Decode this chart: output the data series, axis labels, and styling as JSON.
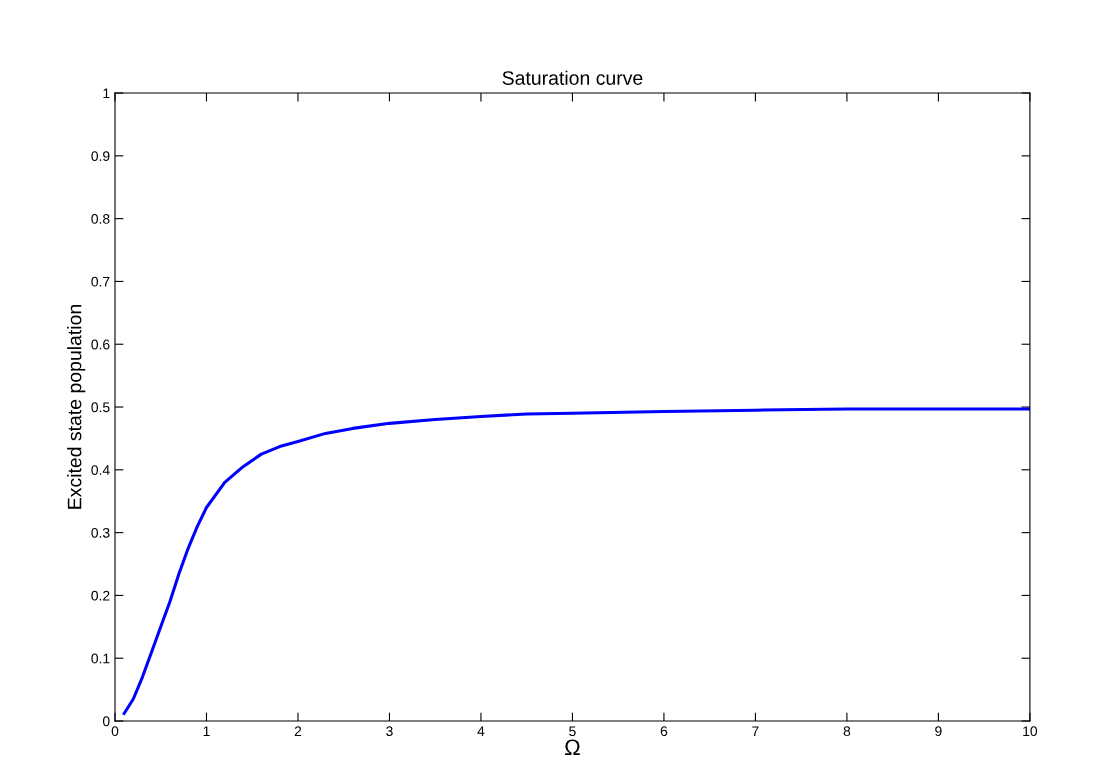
{
  "chart_data": {
    "type": "line",
    "title": "Saturation curve",
    "xlabel": "Ω",
    "ylabel": "Excited state population",
    "x": [
      0.1,
      0.2,
      0.3,
      0.4,
      0.5,
      0.6,
      0.7,
      0.8,
      0.9,
      1.0,
      1.2,
      1.4,
      1.6,
      1.8,
      2.0,
      2.3,
      2.6,
      3.0,
      3.5,
      4.0,
      4.5,
      5.0,
      6.0,
      7.0,
      8.0,
      9.0,
      10.0
    ],
    "series": [
      {
        "color": "#0000ff",
        "values": [
          0.012,
          0.035,
          0.07,
          0.11,
          0.15,
          0.19,
          0.235,
          0.275,
          0.31,
          0.34,
          0.38,
          0.405,
          0.425,
          0.437,
          0.445,
          0.458,
          0.466,
          0.474,
          0.48,
          0.485,
          0.489,
          0.49,
          0.493,
          0.495,
          0.497,
          0.497,
          0.497
        ]
      }
    ],
    "xlim": [
      0,
      10
    ],
    "ylim": [
      0,
      1
    ],
    "xticks": [
      0,
      1,
      2,
      3,
      4,
      5,
      6,
      7,
      8,
      9,
      10
    ],
    "yticks": [
      0,
      0.1,
      0.2,
      0.3,
      0.4,
      0.5,
      0.6,
      0.7,
      0.8,
      0.9,
      1
    ],
    "grid": false,
    "marker": "none",
    "line_style": "solid"
  }
}
